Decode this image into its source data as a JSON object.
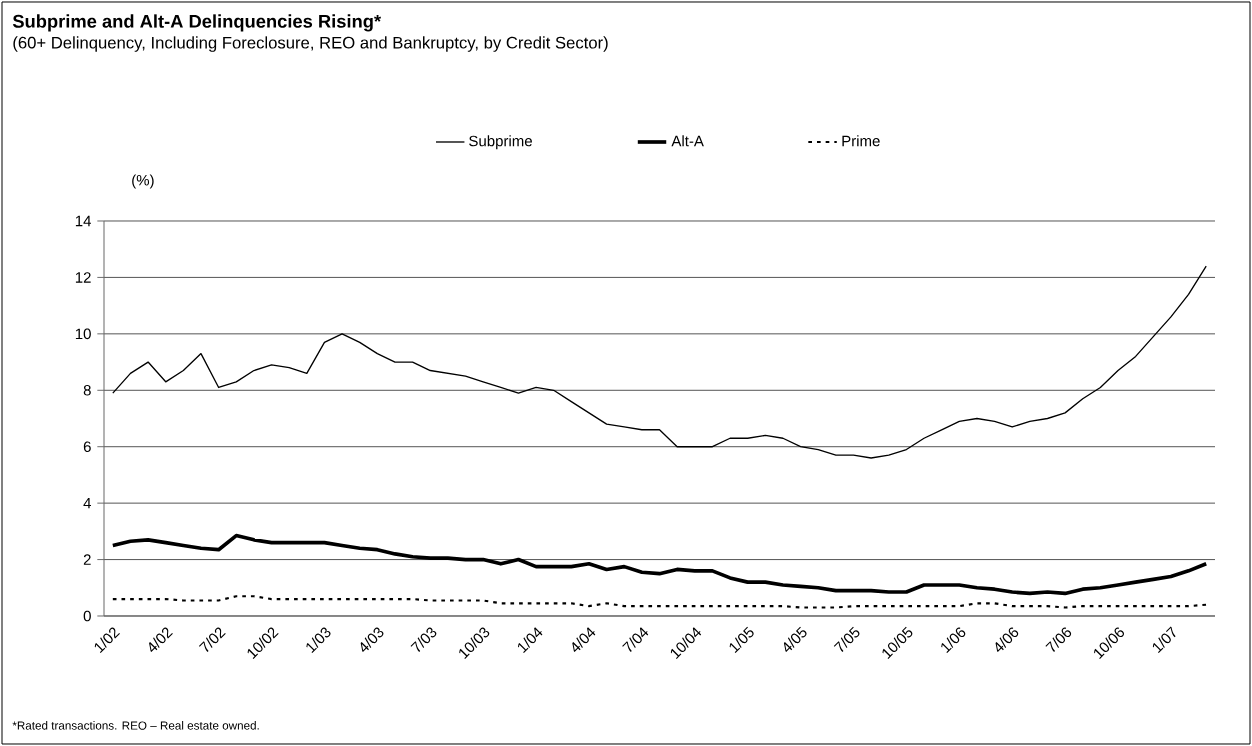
{
  "chart_data": {
    "type": "line",
    "title": "Subprime and Alt-A Delinquencies Rising*",
    "subtitle": "(60+ Delinquency, Including Foreclosure, REO and Bankruptcy, by Credit Sector)",
    "ylabel": "(%)",
    "annotations": [
      "*Rated transactions. REO – Real estate owned."
    ],
    "categories": [
      "1/02",
      null,
      null,
      "4/02",
      null,
      null,
      "7/02",
      null,
      null,
      "10/02",
      null,
      null,
      "1/03",
      null,
      null,
      "4/03",
      null,
      null,
      "7/03",
      null,
      null,
      "10/03",
      null,
      null,
      "1/04",
      null,
      null,
      "4/04",
      null,
      null,
      "7/04",
      null,
      null,
      "10/04",
      null,
      null,
      "1/05",
      null,
      null,
      "4/05",
      null,
      null,
      "7/05",
      null,
      null,
      "10/05",
      null,
      null,
      "1/06",
      null,
      null,
      "4/06",
      null,
      null,
      "7/06",
      null,
      null,
      "10/06",
      null,
      null,
      "1/07",
      null,
      null
    ],
    "series": [
      {
        "name": "Subprime",
        "color": "#000000",
        "line_style": "solid",
        "values": [
          7.9,
          8.6,
          9.0,
          8.3,
          8.7,
          9.3,
          8.1,
          8.3,
          8.7,
          8.9,
          8.8,
          8.6,
          9.7,
          10.0,
          9.7,
          9.3,
          9.0,
          9.0,
          8.7,
          8.6,
          8.5,
          8.3,
          8.1,
          7.9,
          8.1,
          8.0,
          7.6,
          7.2,
          6.8,
          6.7,
          6.6,
          6.6,
          6.0,
          6.0,
          6.0,
          6.3,
          6.3,
          6.4,
          6.3,
          6.0,
          5.9,
          5.7,
          5.7,
          5.6,
          5.7,
          5.9,
          6.3,
          6.6,
          6.9,
          7.0,
          6.9,
          6.7,
          6.9,
          7.0,
          7.2,
          7.7,
          8.1,
          8.7,
          9.2,
          9.9,
          10.6,
          11.4,
          12.4
        ]
      },
      {
        "name": "Alt-A",
        "color": "#000000",
        "line_style": "solid",
        "values": [
          2.5,
          2.65,
          2.7,
          2.6,
          2.5,
          2.4,
          2.35,
          2.85,
          2.7,
          2.6,
          2.6,
          2.6,
          2.6,
          2.5,
          2.4,
          2.35,
          2.2,
          2.1,
          2.05,
          2.05,
          2.0,
          2.0,
          1.85,
          2.0,
          1.75,
          1.75,
          1.75,
          1.85,
          1.65,
          1.75,
          1.55,
          1.5,
          1.65,
          1.6,
          1.6,
          1.35,
          1.2,
          1.2,
          1.1,
          1.05,
          1.0,
          0.9,
          0.9,
          0.9,
          0.85,
          0.85,
          1.1,
          1.1,
          1.1,
          1.0,
          0.95,
          0.85,
          0.8,
          0.85,
          0.8,
          0.95,
          1.0,
          1.1,
          1.2,
          1.3,
          1.4,
          1.6,
          1.85
        ]
      },
      {
        "name": "Prime",
        "color": "#000000",
        "line_style": "dotted",
        "values": [
          0.6,
          0.6,
          0.6,
          0.6,
          0.55,
          0.55,
          0.55,
          0.7,
          0.7,
          0.6,
          0.6,
          0.6,
          0.6,
          0.6,
          0.6,
          0.6,
          0.6,
          0.6,
          0.55,
          0.55,
          0.55,
          0.55,
          0.45,
          0.45,
          0.45,
          0.45,
          0.45,
          0.35,
          0.45,
          0.35,
          0.35,
          0.35,
          0.35,
          0.35,
          0.35,
          0.35,
          0.35,
          0.35,
          0.35,
          0.3,
          0.3,
          0.3,
          0.35,
          0.35,
          0.35,
          0.35,
          0.35,
          0.35,
          0.35,
          0.45,
          0.45,
          0.35,
          0.35,
          0.35,
          0.3,
          0.35,
          0.35,
          0.35,
          0.35,
          0.35,
          0.35,
          0.35,
          0.4
        ]
      }
    ],
    "ylim": [
      0,
      14
    ],
    "yticks": [
      0,
      2,
      4,
      6,
      8,
      10,
      12,
      14
    ],
    "grid": "y",
    "legend": "top",
    "marker": "none"
  }
}
